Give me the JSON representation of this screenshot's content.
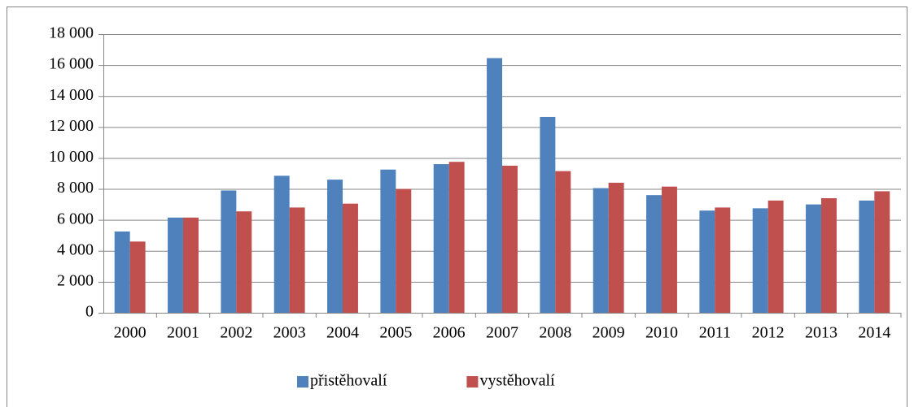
{
  "chart_data": {
    "type": "bar",
    "categories": [
      "2000",
      "2001",
      "2002",
      "2003",
      "2004",
      "2005",
      "2006",
      "2007",
      "2008",
      "2009",
      "2010",
      "2011",
      "2012",
      "2013",
      "2014"
    ],
    "series": [
      {
        "name": "přistěhovalí",
        "color": "#4f81bd",
        "values": [
          5250,
          6150,
          7900,
          8850,
          8600,
          9250,
          9600,
          16450,
          12650,
          8050,
          7600,
          6600,
          6750,
          7000,
          7250
        ]
      },
      {
        "name": "vystěhovalí",
        "color": "#c0504d",
        "values": [
          4600,
          6150,
          6550,
          6800,
          7050,
          8000,
          9750,
          9500,
          9150,
          8400,
          8150,
          6800,
          7250,
          7400,
          7850
        ]
      }
    ],
    "ylim": [
      0,
      18000
    ],
    "yticks": [
      0,
      {
        "value": 2000,
        "label": "2 000"
      },
      {
        "value": 4000,
        "label": "4 000"
      },
      {
        "value": 6000,
        "label": "6 000"
      },
      {
        "value": 8000,
        "label": "8 000"
      },
      {
        "value": 10000,
        "label": "10 000"
      },
      {
        "value": 12000,
        "label": "12 000"
      },
      {
        "value": 14000,
        "label": "14 000"
      },
      {
        "value": 16000,
        "label": "16 000"
      },
      {
        "value": 18000,
        "label": "18 000"
      }
    ],
    "grid": true,
    "legend": "bottom"
  }
}
